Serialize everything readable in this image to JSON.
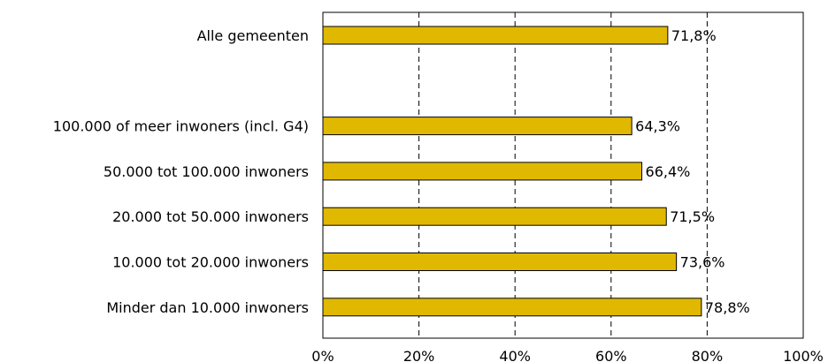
{
  "chart_data": {
    "type": "bar",
    "orientation": "horizontal",
    "categories": [
      "Alle gemeenten",
      "",
      "100.000 of meer inwoners (incl. G4)",
      "50.000 tot 100.000 inwoners",
      "20.000 tot 50.000 inwoners",
      "10.000 tot 20.000 inwoners",
      "Minder dan 10.000 inwoners"
    ],
    "values": [
      71.8,
      null,
      64.3,
      66.4,
      71.5,
      73.6,
      78.8
    ],
    "value_labels": [
      "71,8%",
      "",
      "64,3%",
      "66,4%",
      "71,5%",
      "73,6%",
      "78,8%"
    ],
    "xlim": [
      0,
      100
    ],
    "xticks": [
      0,
      20,
      40,
      60,
      80,
      100
    ],
    "xtick_labels": [
      "0%",
      "20%",
      "40%",
      "60%",
      "80%",
      "100%"
    ],
    "grid": "vertical dashed",
    "bar_color": "#e0b800",
    "bar_border": "#000000",
    "title": "",
    "xlabel": "",
    "ylabel": ""
  }
}
